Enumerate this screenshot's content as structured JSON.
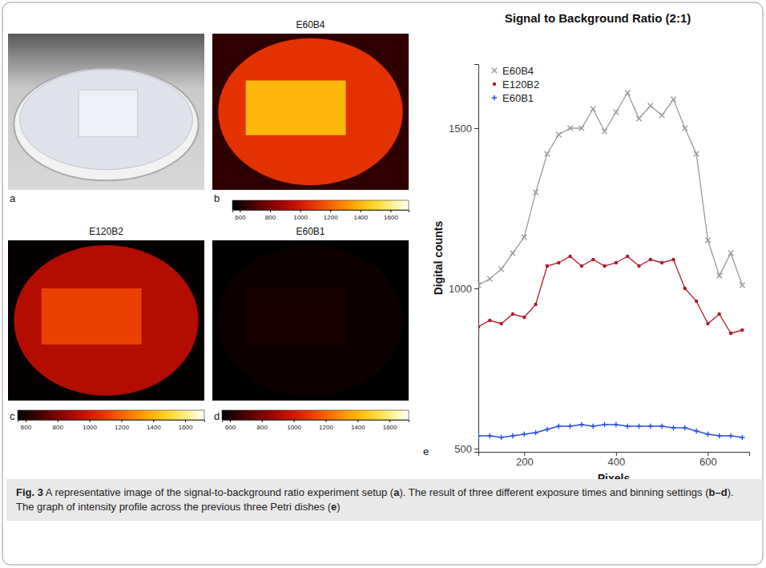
{
  "panel_a": {
    "letter": "a"
  },
  "chart_data": [
    {
      "type": "heatmap",
      "letter": "b",
      "title": "E60B4",
      "regions": {
        "background": 640,
        "dish": 1080,
        "sample": 1400
      },
      "colorbar": {
        "range": [
          550,
          1720
        ],
        "ticks": [
          600,
          800,
          1000,
          1200,
          1400,
          1600
        ]
      }
    },
    {
      "type": "heatmap",
      "letter": "c",
      "title": "E120B2",
      "regions": {
        "background": 560,
        "dish": 920,
        "sample": 1120
      },
      "colorbar": {
        "range": [
          550,
          1720
        ],
        "ticks": [
          600,
          800,
          1000,
          1200,
          1400,
          1600
        ]
      }
    },
    {
      "type": "heatmap",
      "letter": "d",
      "title": "E60B1",
      "regions": {
        "background": 545,
        "dish": 575,
        "sample": 600
      },
      "colorbar": {
        "range": [
          550,
          1720
        ],
        "ticks": [
          600,
          800,
          1000,
          1200,
          1400,
          1600
        ]
      }
    },
    {
      "type": "line",
      "letter": "e",
      "title": "Signal to Background Ratio (2:1)",
      "xlabel": "Pixels",
      "ylabel": "Digital counts",
      "x": [
        100,
        125,
        150,
        175,
        200,
        225,
        250,
        275,
        300,
        325,
        350,
        375,
        400,
        425,
        450,
        475,
        500,
        525,
        550,
        575,
        600,
        625,
        650,
        675
      ],
      "series": [
        {
          "name": "E60B4",
          "color": "#9a9a9a",
          "marker": "x",
          "values": [
            1010,
            1030,
            1060,
            1110,
            1160,
            1300,
            1420,
            1480,
            1500,
            1500,
            1560,
            1490,
            1550,
            1610,
            1530,
            1570,
            1540,
            1590,
            1500,
            1420,
            1150,
            1040,
            1110,
            1010
          ]
        },
        {
          "name": "E120B2",
          "color": "#b2182b",
          "marker": "circle",
          "values": [
            880,
            900,
            890,
            920,
            910,
            950,
            1070,
            1080,
            1100,
            1070,
            1090,
            1070,
            1080,
            1100,
            1070,
            1090,
            1080,
            1090,
            1000,
            960,
            890,
            920,
            860,
            870
          ]
        },
        {
          "name": "E60B1",
          "color": "#2b50e0",
          "marker": "plus",
          "values": [
            540,
            540,
            535,
            540,
            545,
            550,
            560,
            570,
            570,
            575,
            570,
            575,
            575,
            570,
            570,
            570,
            570,
            565,
            565,
            555,
            545,
            540,
            540,
            535
          ]
        }
      ],
      "xlim": [
        100,
        690
      ],
      "ylim": [
        490,
        1700
      ],
      "xticks": [
        200,
        400,
        600
      ],
      "yticks": [
        500,
        1000,
        1500
      ],
      "legend": "upper left"
    }
  ],
  "caption": {
    "label": "Fig. 3",
    "runs": [
      "A representative image of the signal-to-background ratio experiment setup (",
      "a",
      "). The result of three different exposure times and binning settings (",
      "b–d",
      "). The graph of intensity profile across the previous three Petri dishes (",
      "e",
      ")"
    ]
  }
}
